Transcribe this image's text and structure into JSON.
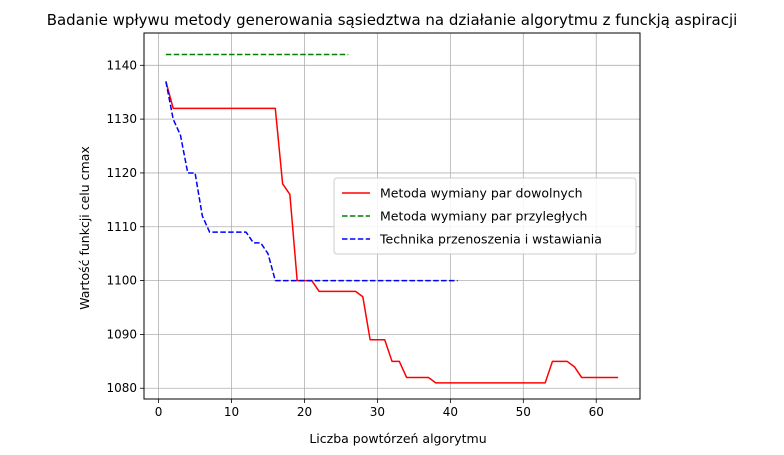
{
  "chart_data": {
    "type": "line",
    "title": "Badanie wpływu metody generowania sąsiedztwa na działanie algorytmu z funckją aspiracji",
    "xlabel": "Liczba powtórzeń algorytmu",
    "ylabel": "Wartość funkcji celu cmax",
    "xlim": [
      -2,
      66
    ],
    "ylim": [
      1078,
      1146
    ],
    "xticks": [
      0,
      10,
      20,
      30,
      40,
      50,
      60
    ],
    "yticks": [
      1080,
      1090,
      1100,
      1110,
      1120,
      1130,
      1140
    ],
    "grid": true,
    "legend_position": "center-right",
    "series": [
      {
        "name": "Metoda wymiany par dowolnych",
        "color": "#ff0000",
        "dash": "solid",
        "x": [
          1,
          2,
          3,
          4,
          5,
          6,
          7,
          8,
          9,
          10,
          11,
          12,
          13,
          14,
          15,
          16,
          17,
          18,
          19,
          20,
          21,
          22,
          23,
          24,
          25,
          26,
          27,
          28,
          29,
          30,
          31,
          32,
          33,
          34,
          35,
          36,
          37,
          38,
          39,
          40,
          41,
          42,
          43,
          44,
          45,
          46,
          47,
          48,
          49,
          50,
          51,
          52,
          53,
          54,
          55,
          56,
          57,
          58,
          59,
          60,
          61,
          62,
          63
        ],
        "y": [
          1137,
          1132,
          1132,
          1132,
          1132,
          1132,
          1132,
          1132,
          1132,
          1132,
          1132,
          1132,
          1132,
          1132,
          1132,
          1132,
          1118,
          1116,
          1100,
          1100,
          1100,
          1098,
          1098,
          1098,
          1098,
          1098,
          1098,
          1097,
          1089,
          1089,
          1089,
          1085,
          1085,
          1082,
          1082,
          1082,
          1082,
          1081,
          1081,
          1081,
          1081,
          1081,
          1081,
          1081,
          1081,
          1081,
          1081,
          1081,
          1081,
          1081,
          1081,
          1081,
          1081,
          1085,
          1085,
          1085,
          1084,
          1082,
          1082,
          1082,
          1082,
          1082,
          1082
        ]
      },
      {
        "name": "Metoda wymiany par przyległych",
        "color": "#008000",
        "dash": "dashed",
        "x": [
          1,
          2,
          3,
          4,
          5,
          6,
          7,
          8,
          9,
          10,
          11,
          12,
          13,
          14,
          15,
          16,
          17,
          18,
          19,
          20,
          21,
          22,
          23,
          24,
          25,
          26
        ],
        "y": [
          1142,
          1142,
          1142,
          1142,
          1142,
          1142,
          1142,
          1142,
          1142,
          1142,
          1142,
          1142,
          1142,
          1142,
          1142,
          1142,
          1142,
          1142,
          1142,
          1142,
          1142,
          1142,
          1142,
          1142,
          1142,
          1142
        ]
      },
      {
        "name": "Technika przenoszenia i wstawiania",
        "color": "#0000ff",
        "dash": "dashed",
        "x": [
          1,
          2,
          3,
          4,
          5,
          6,
          7,
          8,
          9,
          10,
          11,
          12,
          13,
          14,
          15,
          16,
          17,
          18,
          19,
          20,
          21,
          22,
          23,
          24,
          25,
          26,
          27,
          28,
          29,
          30,
          31,
          32,
          33,
          34,
          35,
          36,
          37,
          38,
          39,
          40,
          41
        ],
        "y": [
          1137,
          1130,
          1127,
          1120,
          1120,
          1112,
          1109,
          1109,
          1109,
          1109,
          1109,
          1109,
          1107,
          1107,
          1105,
          1100,
          1100,
          1100,
          1100,
          1100,
          1100,
          1100,
          1100,
          1100,
          1100,
          1100,
          1100,
          1100,
          1100,
          1100,
          1100,
          1100,
          1100,
          1100,
          1100,
          1100,
          1100,
          1100,
          1100,
          1100,
          1100
        ]
      }
    ]
  }
}
